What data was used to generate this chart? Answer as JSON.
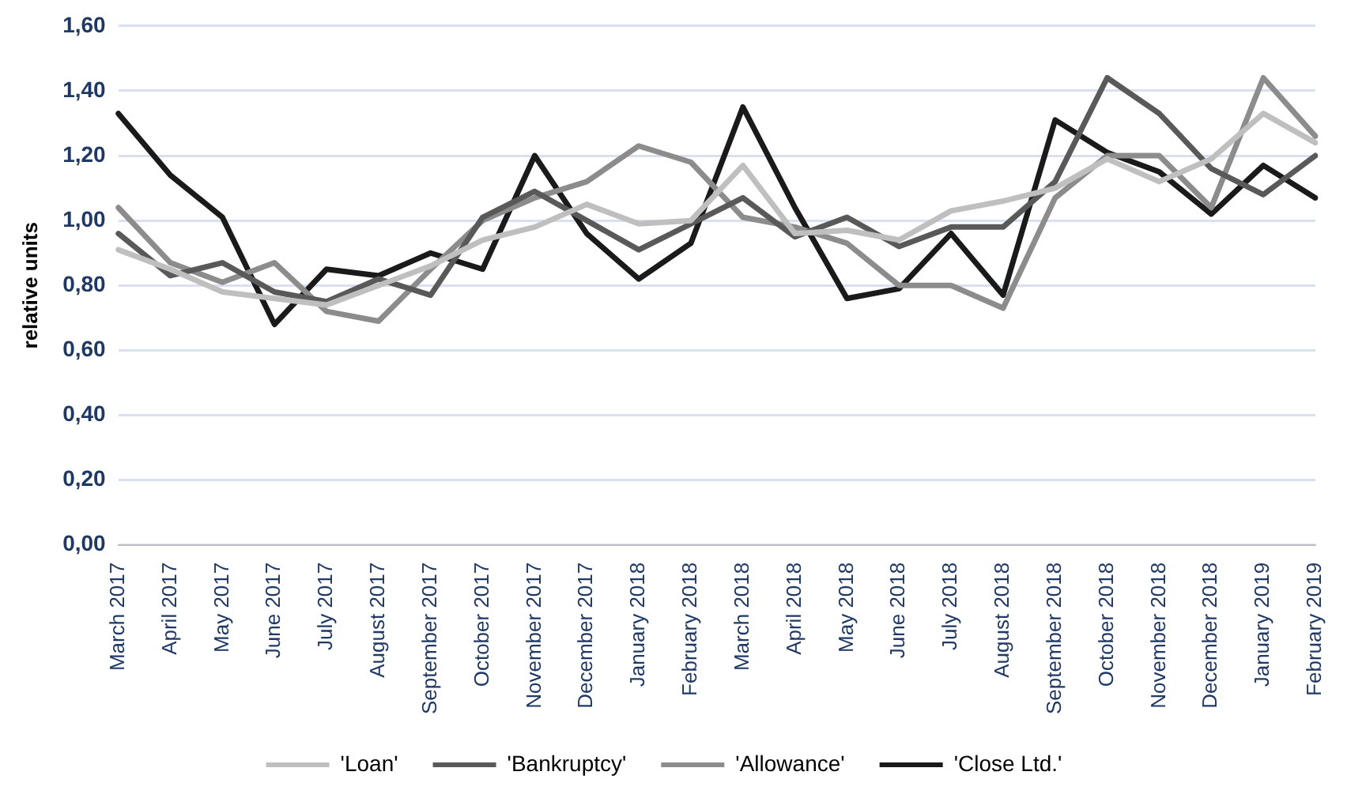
{
  "chart_data": {
    "type": "line",
    "ylabel": "relative units",
    "categories": [
      "March 2017",
      "April 2017",
      "May 2017",
      "June 2017",
      "July 2017",
      "August 2017",
      "September 2017",
      "October 2017",
      "November 2017",
      "December 2017",
      "January 2018",
      "February 2018",
      "March 2018",
      "April 2018",
      "May 2018",
      "June 2018",
      "July 2018",
      "August 2018",
      "September 2018",
      "October 2018",
      "November 2018",
      "December 2018",
      "January 2019",
      "February 2019"
    ],
    "series": [
      {
        "name": "'Loan'",
        "color": "#bfbfbf",
        "values": [
          0.91,
          0.85,
          0.78,
          0.76,
          0.74,
          0.8,
          0.86,
          0.94,
          0.98,
          1.05,
          0.99,
          1.0,
          1.17,
          0.96,
          0.97,
          0.94,
          1.03,
          1.06,
          1.1,
          1.19,
          1.12,
          1.19,
          1.33,
          1.24
        ]
      },
      {
        "name": "'Bankruptcy'",
        "color": "#595959",
        "values": [
          0.96,
          0.83,
          0.87,
          0.78,
          0.75,
          0.82,
          0.77,
          1.01,
          1.09,
          1.0,
          0.91,
          0.99,
          1.07,
          0.95,
          1.01,
          0.92,
          0.98,
          0.98,
          1.12,
          1.44,
          1.33,
          1.16,
          1.08,
          1.2
        ]
      },
      {
        "name": "'Allowance'",
        "color": "#8c8c8c",
        "values": [
          1.04,
          0.87,
          0.81,
          0.87,
          0.72,
          0.69,
          0.85,
          1.0,
          1.07,
          1.12,
          1.23,
          1.18,
          1.01,
          0.98,
          0.93,
          0.8,
          0.8,
          0.73,
          1.07,
          1.2,
          1.2,
          1.04,
          1.44,
          1.26
        ]
      },
      {
        "name": "'Close Ltd.'",
        "color": "#1a1a1a",
        "values": [
          1.33,
          1.14,
          1.01,
          0.68,
          0.85,
          0.83,
          0.9,
          0.85,
          1.2,
          0.96,
          0.82,
          0.93,
          1.35,
          1.04,
          0.76,
          0.79,
          0.96,
          0.77,
          1.31,
          1.21,
          1.15,
          1.02,
          1.17,
          1.07
        ]
      }
    ],
    "ylim": [
      0,
      1.6
    ],
    "yticks": [
      {
        "value": 0,
        "label": "0,00"
      },
      {
        "value": 0.2,
        "label": "0,20"
      },
      {
        "value": 0.4,
        "label": "0,40"
      },
      {
        "value": 0.6,
        "label": "0,60"
      },
      {
        "value": 0.8,
        "label": "0,80"
      },
      {
        "value": 1.0,
        "label": "1,00"
      },
      {
        "value": 1.2,
        "label": "1,20"
      },
      {
        "value": 1.4,
        "label": "1,40"
      },
      {
        "value": 1.6,
        "label": "1,60"
      }
    ],
    "grid": "y",
    "legend": "bottom",
    "marker": "none",
    "line_style": "solid"
  }
}
